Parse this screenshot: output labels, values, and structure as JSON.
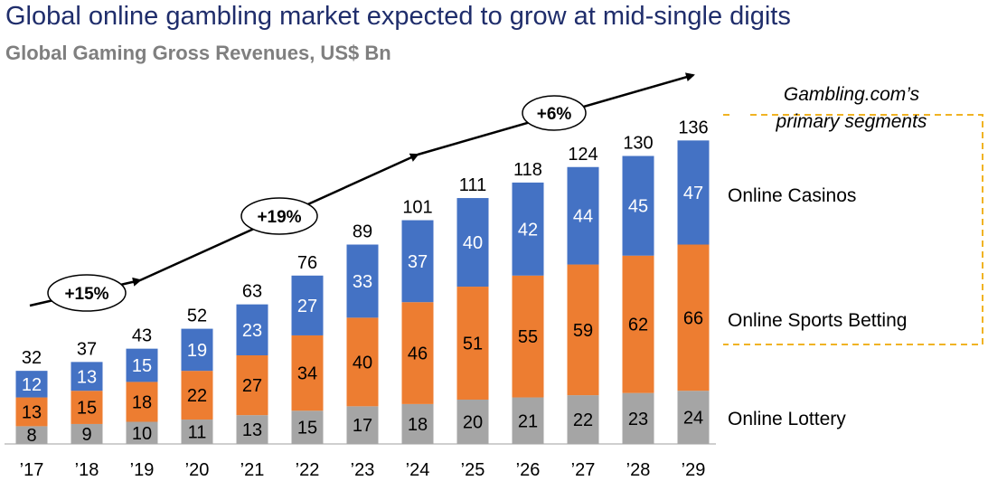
{
  "title": "Global online gambling market expected to grow at mid-single digits",
  "subtitle": "Global Gaming Gross Revenues, US$ Bn",
  "colors": {
    "lottery": "#a5a5a5",
    "sports": "#ed7d31",
    "casinos": "#4472c4",
    "bracket": "#f0b323",
    "title": "#1f2d6b",
    "subtitle": "#7f7f7f"
  },
  "growth_labels": [
    "+15%",
    "+19%",
    "+6%"
  ],
  "bracket_label": [
    "Gambling.com’s",
    "primary segments"
  ],
  "chart_data": {
    "type": "bar",
    "stacked": true,
    "title": "Global online gambling market expected to grow at mid-single digits",
    "subtitle": "Global Gaming Gross Revenues, US$ Bn",
    "categories": [
      "’17",
      "’18",
      "’19",
      "’20",
      "’21",
      "’22",
      "’23",
      "’24",
      "’25",
      "’26",
      "’27",
      "’28",
      "’29"
    ],
    "totals": [
      32,
      37,
      43,
      52,
      63,
      76,
      89,
      101,
      111,
      118,
      124,
      130,
      136
    ],
    "series": [
      {
        "name": "Online Lottery",
        "color": "#a5a5a5",
        "values": [
          8,
          9,
          10,
          11,
          13,
          15,
          17,
          18,
          20,
          21,
          22,
          23,
          24
        ]
      },
      {
        "name": "Online Sports Betting",
        "color": "#ed7d31",
        "values": [
          13,
          15,
          18,
          22,
          27,
          34,
          40,
          46,
          51,
          55,
          59,
          62,
          66
        ]
      },
      {
        "name": "Online Casinos",
        "color": "#4472c4",
        "values": [
          12,
          13,
          15,
          19,
          23,
          27,
          33,
          37,
          40,
          42,
          44,
          45,
          47
        ]
      }
    ],
    "ylim": [
      0,
      140
    ],
    "grid": false,
    "legend": "right"
  }
}
